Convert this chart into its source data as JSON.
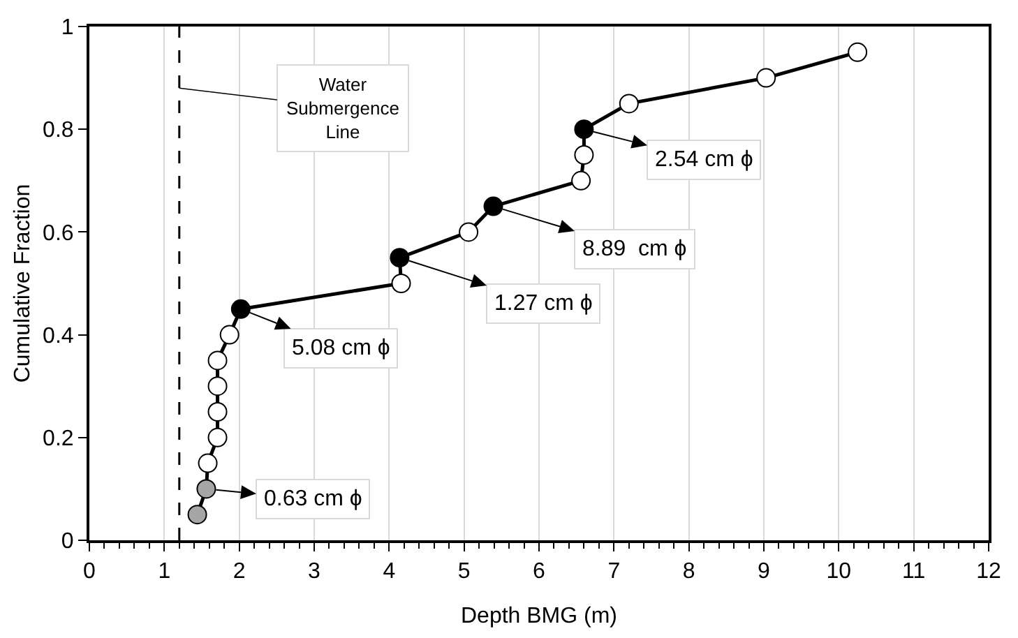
{
  "chart_data": {
    "type": "line",
    "xlabel": "Depth BMG (m)",
    "ylabel": "Cumulative Fraction",
    "series": [
      {
        "color": "#000000",
        "x": [
          1.44,
          1.56,
          1.58,
          1.71,
          1.71,
          1.71,
          1.71,
          1.87,
          2.02,
          4.16,
          4.14,
          5.06,
          5.39,
          6.56,
          6.6,
          6.6,
          7.2,
          9.03,
          10.25
        ],
        "values": [
          0.05,
          0.1,
          0.15,
          0.2,
          0.25,
          0.3,
          0.35,
          0.4,
          0.45,
          0.5,
          0.55,
          0.6,
          0.65,
          0.7,
          0.75,
          0.8,
          0.85,
          0.9,
          0.95
        ],
        "colors": [
          "#a6a6a6",
          "#a6a6a6",
          "#ffffff",
          "#ffffff",
          "#ffffff",
          "#ffffff",
          "#ffffff",
          "#ffffff",
          "#000000",
          "#ffffff",
          "#000000",
          "#ffffff",
          "#000000",
          "#ffffff",
          "#ffffff",
          "#000000",
          "#ffffff",
          "#ffffff",
          "#ffffff"
        ]
      }
    ],
    "xlim": [
      0,
      12
    ],
    "xticks": [
      0,
      1,
      2,
      3,
      4,
      5,
      6,
      7,
      8,
      9,
      10,
      11,
      12
    ],
    "ylim": [
      0,
      1
    ],
    "yticks": [
      0,
      0.2,
      0.4,
      0.6,
      0.8,
      1
    ],
    "grid": "x",
    "marker": "circle",
    "line_style": "solid",
    "ref_lines": [
      {
        "axis": "x",
        "value": 1.2,
        "label": "Water\nSubmergence\nLine",
        "color": "#000000",
        "line_style": "dashed"
      }
    ],
    "annotations": [
      {
        "text": "0.63 cm ϕ",
        "x": 1.56,
        "y": 0.1
      },
      {
        "text": "5.08 cm ϕ",
        "x": 2.02,
        "y": 0.45
      },
      {
        "text": "1.27 cm ϕ",
        "x": 4.14,
        "y": 0.55
      },
      {
        "text": "8.89  cm ϕ",
        "x": 5.39,
        "y": 0.65
      },
      {
        "text": "2.54 cm ϕ",
        "x": 6.6,
        "y": 0.8
      }
    ]
  }
}
